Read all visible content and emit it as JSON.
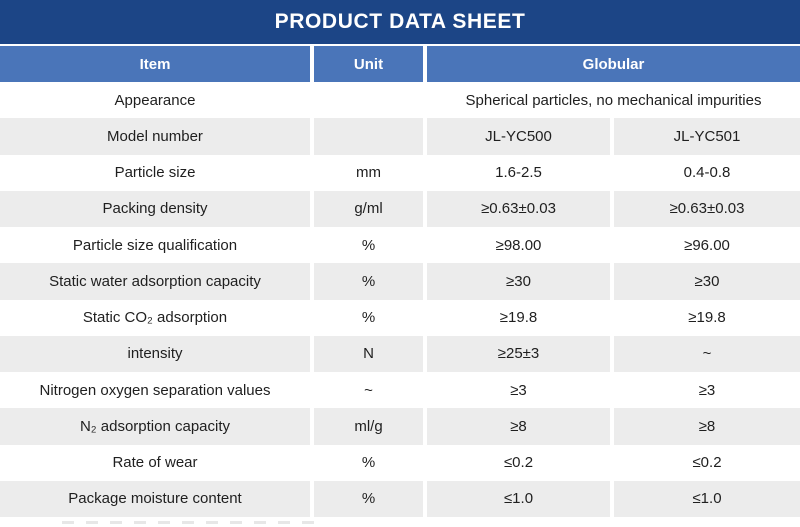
{
  "title": "PRODUCT DATA SHEET",
  "colors": {
    "banner": "#1C4586",
    "header": "#4A75B9",
    "stripe": "#ECECEC",
    "text": "#1F1F1F"
  },
  "table": {
    "headers": {
      "item": "Item",
      "unit": "Unit",
      "globular": "Globular"
    },
    "rows": [
      {
        "item": "Appearance",
        "unit": "",
        "span": "Spherical particles, no mechanical impurities"
      },
      {
        "item": "Model number",
        "unit": "",
        "v1": "JL-YC500",
        "v2": "JL-YC501"
      },
      {
        "item": "Particle size",
        "unit": "mm",
        "v1": "1.6-2.5",
        "v2": "0.4-0.8"
      },
      {
        "item": "Packing density",
        "unit": "g/ml",
        "v1": "≥0.63±0.03",
        "v2": "≥0.63±0.03"
      },
      {
        "item": "Particle size qualification",
        "unit": "%",
        "v1": "≥98.00",
        "v2": "≥96.00"
      },
      {
        "item": "Static water adsorption capacity",
        "unit": "%",
        "v1": "≥30",
        "v2": "≥30"
      },
      {
        "item": "Static CO₂ adsorption",
        "unit": "%",
        "v1": "≥19.8",
        "v2": "≥19.8"
      },
      {
        "item": "intensity",
        "unit": "N",
        "v1": "≥25±3",
        "v2": "~"
      },
      {
        "item": "Nitrogen oxygen separation values",
        "unit": "~",
        "v1": "≥3",
        "v2": "≥3"
      },
      {
        "item": "N₂ adsorption capacity",
        "unit": "ml/g",
        "v1": "≥8",
        "v2": "≥8"
      },
      {
        "item": "Rate of wear",
        "unit": "%",
        "v1": "≤0.2",
        "v2": "≤0.2"
      },
      {
        "item": "Package moisture content",
        "unit": "%",
        "v1": "≤1.0",
        "v2": "≤1.0"
      }
    ]
  }
}
